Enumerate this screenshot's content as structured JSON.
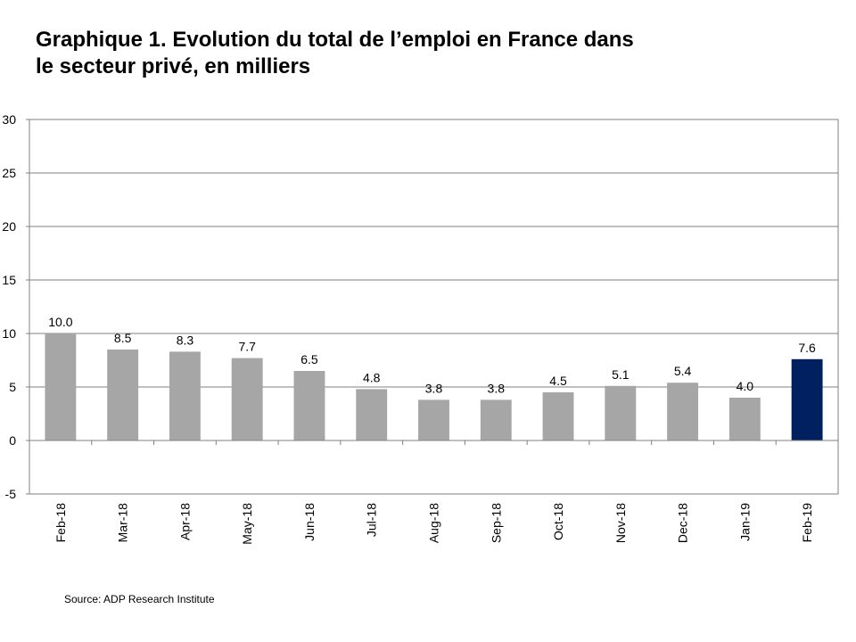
{
  "title_line1": "Graphique 1. Evolution du total de l’emploi en France dans",
  "title_line2": "le secteur privé, en milliers",
  "source": "Source: ADP Research Institute",
  "chart_data": {
    "type": "bar",
    "title": "Graphique 1. Evolution du total de l’emploi en France dans le secteur privé, en milliers",
    "categories": [
      "Feb-18",
      "Mar-18",
      "Apr-18",
      "May-18",
      "Jun-18",
      "Jul-18",
      "Aug-18",
      "Sep-18",
      "Oct-18",
      "Nov-18",
      "Dec-18",
      "Jan-19",
      "Feb-19"
    ],
    "values": [
      10.0,
      8.5,
      8.3,
      7.7,
      6.5,
      4.8,
      3.8,
      3.8,
      4.5,
      5.1,
      5.4,
      4.0,
      7.6
    ],
    "data_labels": [
      "10.0",
      "8.5",
      "8.3",
      "7.7",
      "6.5",
      "4.8",
      "3.8",
      "3.8",
      "4.5",
      "5.1",
      "5.4",
      "4.0",
      "7.6"
    ],
    "ylim": [
      -5,
      30
    ],
    "yticks": [
      -5,
      0,
      5,
      10,
      15,
      20,
      25,
      30
    ],
    "grid": true,
    "legend": "none",
    "colors": {
      "bar": "#a6a6a6",
      "highlight": "#002060",
      "grid": "#808080",
      "axis": "#808080"
    },
    "highlight_index": 12
  }
}
